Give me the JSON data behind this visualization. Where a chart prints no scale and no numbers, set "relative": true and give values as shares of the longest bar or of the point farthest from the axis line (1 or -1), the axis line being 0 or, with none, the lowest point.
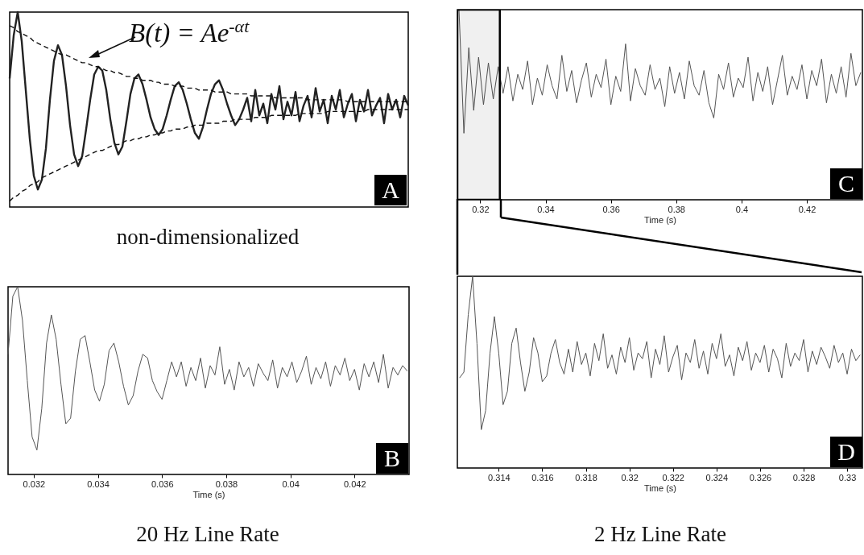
{
  "chart_data": [
    {
      "type": "line",
      "relative": true,
      "tick_labels": false,
      "line_style": "solid",
      "categories": [
        null,
        null,
        null,
        null,
        null,
        null,
        null,
        null,
        null,
        null,
        null,
        null,
        null,
        null,
        null,
        null,
        null,
        null,
        null,
        null,
        null,
        null,
        null,
        null,
        null,
        null,
        null,
        null,
        null,
        null,
        null,
        null,
        null,
        null,
        null,
        null,
        null,
        null,
        null,
        null,
        null,
        null,
        null,
        null,
        null,
        null,
        null,
        null,
        null,
        null,
        null,
        null,
        null,
        null,
        null,
        null,
        null,
        null,
        null,
        null,
        null,
        null,
        null,
        null,
        null,
        null,
        null,
        null,
        null,
        null,
        null,
        null,
        null,
        null,
        null,
        null,
        null,
        null,
        null,
        null,
        null,
        null,
        null,
        null,
        null,
        null,
        null,
        null,
        null,
        null,
        null,
        null,
        null,
        null,
        null,
        null,
        null,
        null,
        null,
        null
      ],
      "series": [
        {
          "color": "#222222",
          "values": [
            0.66,
            0.88,
            1.0,
            0.85,
            0.6,
            0.35,
            0.16,
            0.09,
            0.14,
            0.3,
            0.55,
            0.75,
            0.83,
            0.78,
            0.62,
            0.42,
            0.27,
            0.21,
            0.26,
            0.4,
            0.55,
            0.68,
            0.72,
            0.7,
            0.6,
            0.45,
            0.33,
            0.27,
            0.31,
            0.44,
            0.58,
            0.66,
            0.68,
            0.63,
            0.55,
            0.46,
            0.4,
            0.37,
            0.4,
            0.47,
            0.55,
            0.62,
            0.64,
            0.6,
            0.53,
            0.45,
            0.38,
            0.35,
            0.41,
            0.5,
            0.58,
            0.63,
            0.65,
            0.6,
            0.53,
            0.47,
            0.42,
            0.45,
            0.5,
            0.56,
            0.44,
            0.6,
            0.47,
            0.53,
            0.43,
            0.58,
            0.5,
            0.62,
            0.45,
            0.54,
            0.47,
            0.59,
            0.44,
            0.52,
            0.57,
            0.46,
            0.61,
            0.49,
            0.55,
            0.43,
            0.57,
            0.5,
            0.6,
            0.46,
            0.53,
            0.58,
            0.44,
            0.55,
            0.49,
            0.6,
            0.47,
            0.52,
            0.56,
            0.43,
            0.58,
            0.5,
            0.55,
            0.46,
            0.57,
            0.52
          ]
        },
        {
          "type": "line",
          "line_style": "dashed",
          "color": "#111111",
          "values": [
            0.93,
            0.92,
            0.9,
            0.89,
            0.88,
            0.87,
            0.85,
            0.84,
            0.83,
            0.82,
            0.81,
            0.8,
            0.79,
            0.78,
            0.78,
            0.77,
            0.76,
            0.75,
            0.74,
            0.74,
            0.73,
            0.72,
            0.72,
            0.71,
            0.7,
            0.7,
            0.69,
            0.69,
            0.68,
            0.67,
            0.67,
            0.66,
            0.66,
            0.65,
            0.65,
            0.65,
            0.64,
            0.64,
            0.63,
            0.63,
            0.63,
            0.62,
            0.62,
            0.62,
            0.61,
            0.61,
            0.61,
            0.6,
            0.6,
            0.6,
            0.6,
            0.59,
            0.59,
            0.59,
            0.59,
            0.58,
            0.58,
            0.58,
            0.58,
            0.58,
            0.57,
            0.57,
            0.57,
            0.57,
            0.57,
            0.57,
            0.56,
            0.56,
            0.56,
            0.56,
            0.56,
            0.56,
            0.56,
            0.56,
            0.55,
            0.55,
            0.55,
            0.55,
            0.55,
            0.55,
            0.55,
            0.55,
            0.55,
            0.55,
            0.54,
            0.54,
            0.54,
            0.54,
            0.54,
            0.54,
            0.54,
            0.54,
            0.54,
            0.54,
            0.54,
            0.54,
            0.54,
            0.54,
            0.54,
            0.54
          ]
        },
        {
          "type": "line",
          "line_style": "dashed",
          "color": "#111111",
          "values": [
            0.03,
            0.05,
            0.06,
            0.08,
            0.09,
            0.11,
            0.12,
            0.13,
            0.15,
            0.16,
            0.17,
            0.18,
            0.19,
            0.2,
            0.21,
            0.22,
            0.23,
            0.24,
            0.25,
            0.26,
            0.27,
            0.28,
            0.29,
            0.29,
            0.3,
            0.31,
            0.32,
            0.32,
            0.33,
            0.34,
            0.34,
            0.35,
            0.35,
            0.36,
            0.36,
            0.37,
            0.37,
            0.38,
            0.38,
            0.39,
            0.39,
            0.4,
            0.4,
            0.4,
            0.41,
            0.41,
            0.42,
            0.42,
            0.42,
            0.43,
            0.43,
            0.43,
            0.43,
            0.44,
            0.44,
            0.44,
            0.45,
            0.45,
            0.45,
            0.45,
            0.45,
            0.46,
            0.46,
            0.46,
            0.46,
            0.47,
            0.47,
            0.47,
            0.47,
            0.47,
            0.47,
            0.47,
            0.48,
            0.48,
            0.48,
            0.48,
            0.48,
            0.48,
            0.48,
            0.49,
            0.49,
            0.49,
            0.49,
            0.49,
            0.49,
            0.49,
            0.49,
            0.49,
            0.49,
            0.5,
            0.5,
            0.5,
            0.5,
            0.5,
            0.5,
            0.5,
            0.5,
            0.5,
            0.5,
            0.5
          ]
        }
      ],
      "annotations": [
        "B(t) = Ae$^{-αt}$",
        "A",
        "non-dimensionalized"
      ]
    },
    {
      "type": "line",
      "relative": true,
      "tick_labels": "x",
      "xlabel": "Time (s)",
      "xlim": [
        0.0312,
        0.0437
      ],
      "xticks": [
        0.032,
        0.034,
        0.036,
        0.038,
        0.04,
        0.042
      ],
      "x": [
        0.0312,
        0.03135,
        0.0315,
        0.03165,
        0.0318,
        0.03195,
        0.0321,
        0.03225,
        0.0324,
        0.03255,
        0.0327,
        0.03285,
        0.033,
        0.03315,
        0.0333,
        0.03345,
        0.0336,
        0.03375,
        0.0339,
        0.03405,
        0.0342,
        0.03435,
        0.0345,
        0.03465,
        0.0348,
        0.03495,
        0.0351,
        0.03525,
        0.0354,
        0.03555,
        0.0357,
        0.03585,
        0.036,
        0.03615,
        0.0363,
        0.03645,
        0.0366,
        0.03675,
        0.0369,
        0.03705,
        0.0372,
        0.03735,
        0.0375,
        0.03765,
        0.0378,
        0.03795,
        0.0381,
        0.03825,
        0.0384,
        0.03855,
        0.0387,
        0.03885,
        0.039,
        0.03915,
        0.0393,
        0.03945,
        0.0396,
        0.03975,
        0.0399,
        0.04005,
        0.0402,
        0.04035,
        0.0405,
        0.04065,
        0.0408,
        0.04095,
        0.0411,
        0.04125,
        0.0414,
        0.04155,
        0.0417,
        0.04185,
        0.042,
        0.04215,
        0.0423,
        0.04245,
        0.0426,
        0.04275,
        0.0429,
        0.04305,
        0.0432,
        0.04335,
        0.0435,
        0.04365
      ],
      "series": [
        {
          "color": "#555555",
          "values": [
            0.64,
            0.95,
            1.0,
            0.82,
            0.5,
            0.2,
            0.13,
            0.35,
            0.7,
            0.85,
            0.72,
            0.48,
            0.27,
            0.3,
            0.55,
            0.72,
            0.74,
            0.6,
            0.45,
            0.39,
            0.48,
            0.66,
            0.7,
            0.6,
            0.47,
            0.37,
            0.42,
            0.55,
            0.64,
            0.62,
            0.5,
            0.44,
            0.4,
            0.5,
            0.6,
            0.52,
            0.6,
            0.47,
            0.57,
            0.5,
            0.62,
            0.46,
            0.58,
            0.53,
            0.68,
            0.48,
            0.56,
            0.45,
            0.6,
            0.52,
            0.57,
            0.47,
            0.59,
            0.54,
            0.5,
            0.61,
            0.46,
            0.57,
            0.52,
            0.6,
            0.49,
            0.55,
            0.63,
            0.48,
            0.57,
            0.51,
            0.6,
            0.47,
            0.58,
            0.53,
            0.62,
            0.5,
            0.56,
            0.45,
            0.59,
            0.52,
            0.6,
            0.49,
            0.64,
            0.46,
            0.57,
            0.53,
            0.58,
            0.55
          ]
        }
      ],
      "annotations": [
        "B",
        "20 Hz Line Rate"
      ]
    },
    {
      "type": "line",
      "relative": true,
      "tick_labels": "x",
      "xlabel": "Time (s)",
      "xlim": [
        0.313,
        0.437
      ],
      "xticks": [
        0.32,
        0.34,
        0.36,
        0.38,
        0.4,
        0.42
      ],
      "x": [
        0.3135,
        0.315,
        0.3165,
        0.318,
        0.3195,
        0.321,
        0.3225,
        0.324,
        0.3255,
        0.327,
        0.3285,
        0.33,
        0.3315,
        0.333,
        0.3345,
        0.336,
        0.3375,
        0.339,
        0.3405,
        0.342,
        0.3435,
        0.345,
        0.3465,
        0.348,
        0.3495,
        0.351,
        0.3525,
        0.354,
        0.3555,
        0.357,
        0.3585,
        0.36,
        0.3615,
        0.363,
        0.3645,
        0.366,
        0.3675,
        0.369,
        0.3705,
        0.372,
        0.3735,
        0.375,
        0.3765,
        0.378,
        0.3795,
        0.381,
        0.3825,
        0.384,
        0.3855,
        0.387,
        0.3885,
        0.39,
        0.3915,
        0.393,
        0.3945,
        0.396,
        0.3975,
        0.399,
        0.4005,
        0.402,
        0.4035,
        0.405,
        0.4065,
        0.408,
        0.4095,
        0.411,
        0.4125,
        0.414,
        0.4155,
        0.417,
        0.4185,
        0.42,
        0.4215,
        0.423,
        0.4245,
        0.426,
        0.4275,
        0.429,
        0.4305,
        0.432,
        0.4335,
        0.435,
        0.4365
      ],
      "series": [
        {
          "color": "#555555",
          "values": [
            1.0,
            0.35,
            0.8,
            0.47,
            0.75,
            0.5,
            0.72,
            0.53,
            0.7,
            0.56,
            0.7,
            0.52,
            0.66,
            0.58,
            0.73,
            0.5,
            0.64,
            0.55,
            0.71,
            0.6,
            0.53,
            0.76,
            0.57,
            0.68,
            0.51,
            0.63,
            0.72,
            0.54,
            0.66,
            0.59,
            0.74,
            0.5,
            0.65,
            0.57,
            0.82,
            0.52,
            0.69,
            0.6,
            0.55,
            0.71,
            0.58,
            0.64,
            0.49,
            0.7,
            0.56,
            0.67,
            0.53,
            0.73,
            0.6,
            0.55,
            0.68,
            0.51,
            0.43,
            0.66,
            0.58,
            0.72,
            0.54,
            0.64,
            0.59,
            0.75,
            0.52,
            0.67,
            0.57,
            0.7,
            0.5,
            0.63,
            0.76,
            0.55,
            0.65,
            0.58,
            0.71,
            0.53,
            0.68,
            0.6,
            0.74,
            0.51,
            0.66,
            0.56,
            0.7,
            0.54,
            0.77,
            0.6,
            0.67
          ]
        }
      ],
      "bands": [
        {
          "axis": "x",
          "from": 0.313,
          "to": 0.326
        }
      ],
      "annotations": [
        "C"
      ]
    },
    {
      "type": "line",
      "relative": true,
      "tick_labels": "x",
      "xlabel": "Time (s)",
      "xlim": [
        0.3121,
        0.3307
      ],
      "xticks": [
        0.314,
        0.316,
        0.318,
        0.32,
        0.322,
        0.324,
        0.326,
        0.328,
        0.33
      ],
      "x": [
        0.3122,
        0.3124,
        0.3126,
        0.3128,
        0.313,
        0.3132,
        0.3134,
        0.3136,
        0.3138,
        0.314,
        0.3142,
        0.3144,
        0.3146,
        0.3148,
        0.315,
        0.3152,
        0.3154,
        0.3156,
        0.3158,
        0.316,
        0.3162,
        0.3164,
        0.3166,
        0.3168,
        0.317,
        0.3172,
        0.3174,
        0.3176,
        0.3178,
        0.318,
        0.3182,
        0.3184,
        0.3186,
        0.3188,
        0.319,
        0.3192,
        0.3194,
        0.3196,
        0.3198,
        0.32,
        0.3202,
        0.3204,
        0.3206,
        0.3208,
        0.321,
        0.3212,
        0.3214,
        0.3216,
        0.3218,
        0.322,
        0.3222,
        0.3224,
        0.3226,
        0.3228,
        0.323,
        0.3232,
        0.3234,
        0.3236,
        0.3238,
        0.324,
        0.3242,
        0.3244,
        0.3246,
        0.3248,
        0.325,
        0.3252,
        0.3254,
        0.3256,
        0.3258,
        0.326,
        0.3262,
        0.3264,
        0.3266,
        0.3268,
        0.327,
        0.3272,
        0.3274,
        0.3276,
        0.3278,
        0.328,
        0.3282,
        0.3284,
        0.3286,
        0.3288,
        0.329,
        0.3292,
        0.3294,
        0.3296,
        0.3298,
        0.33,
        0.3302,
        0.3304,
        0.3306
      ],
      "series": [
        {
          "color": "#555555",
          "values": [
            0.47,
            0.5,
            0.8,
            1.0,
            0.65,
            0.2,
            0.3,
            0.6,
            0.79,
            0.6,
            0.33,
            0.4,
            0.65,
            0.73,
            0.55,
            0.4,
            0.5,
            0.68,
            0.6,
            0.45,
            0.48,
            0.6,
            0.67,
            0.55,
            0.49,
            0.62,
            0.5,
            0.66,
            0.54,
            0.6,
            0.48,
            0.65,
            0.56,
            0.7,
            0.52,
            0.59,
            0.49,
            0.63,
            0.55,
            0.68,
            0.51,
            0.6,
            0.57,
            0.66,
            0.47,
            0.62,
            0.54,
            0.69,
            0.5,
            0.58,
            0.64,
            0.46,
            0.6,
            0.55,
            0.67,
            0.52,
            0.61,
            0.49,
            0.65,
            0.57,
            0.7,
            0.53,
            0.59,
            0.48,
            0.63,
            0.56,
            0.66,
            0.51,
            0.6,
            0.55,
            0.64,
            0.5,
            0.62,
            0.57,
            0.47,
            0.65,
            0.53,
            0.6,
            0.56,
            0.67,
            0.5,
            0.61,
            0.54,
            0.63,
            0.58,
            0.52,
            0.64,
            0.55,
            0.6,
            0.49,
            0.62,
            0.56,
            0.59
          ]
        }
      ],
      "annotations": [
        "D",
        "2 Hz Line Rate"
      ]
    }
  ]
}
